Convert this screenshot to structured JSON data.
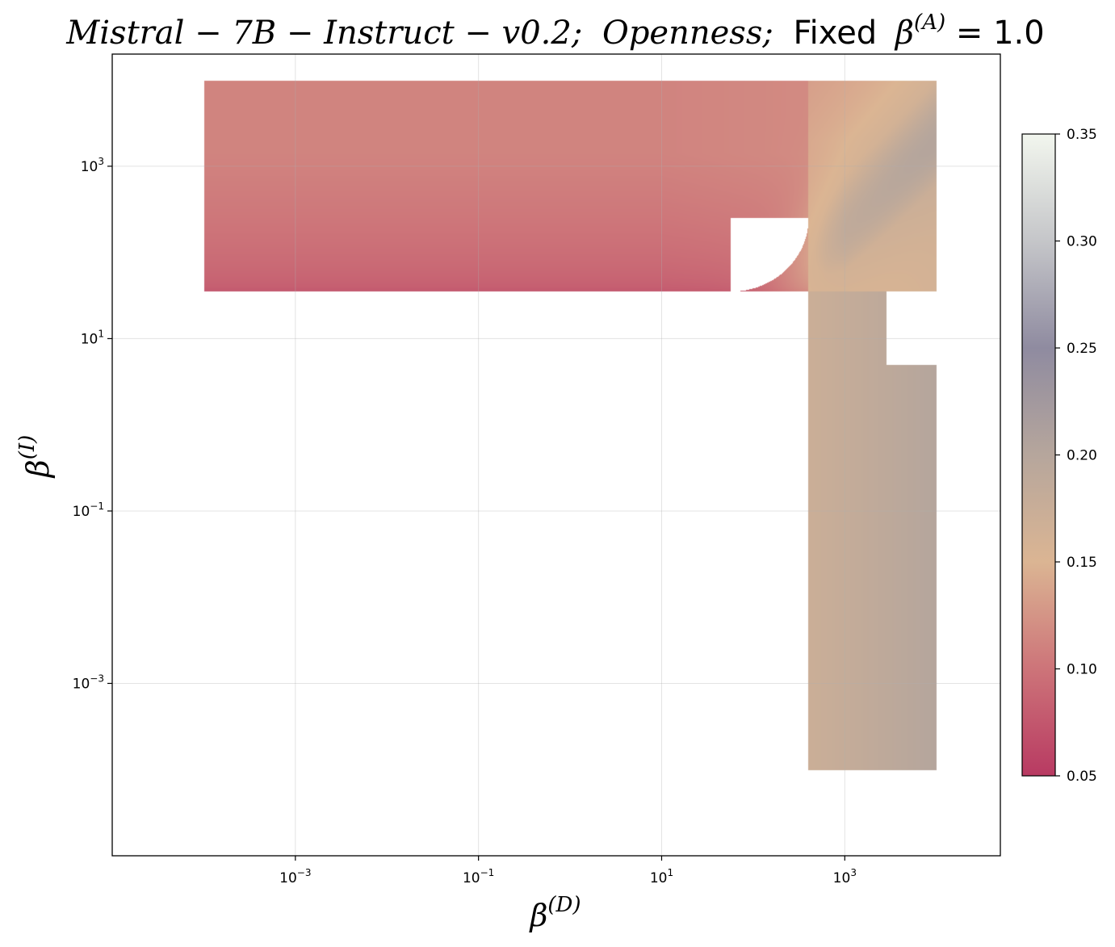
{
  "chart_data": {
    "type": "heatmap",
    "title": {
      "part1": "Mistral − 7B − Instruct − v0.2;",
      "part2": "Openness;",
      "part3": "Fixed",
      "beta": "β",
      "sup": "(A)",
      "eq": " = 1.0"
    },
    "xlabel": {
      "base": "β",
      "sup": "(D)"
    },
    "ylabel": {
      "base": "β",
      "sup": "(I)"
    },
    "x_scale": "log",
    "y_scale": "log",
    "xlim": [
      1e-05,
      50000
    ],
    "ylim": [
      1e-05,
      20000
    ],
    "x_ticks": [
      {
        "value": 0.001,
        "base": "10",
        "exp": "−3"
      },
      {
        "value": 0.1,
        "base": "10",
        "exp": "−1"
      },
      {
        "value": 10,
        "base": "10",
        "exp": "1"
      },
      {
        "value": 1000,
        "base": "10",
        "exp": "3"
      }
    ],
    "y_ticks": [
      {
        "value": 0.001,
        "base": "10",
        "exp": "−3"
      },
      {
        "value": 0.1,
        "base": "10",
        "exp": "−1"
      },
      {
        "value": 10,
        "base": "10",
        "exp": "1"
      },
      {
        "value": 1000,
        "base": "10",
        "exp": "3"
      }
    ],
    "grid": true,
    "data_extent": {
      "x": [
        0.0001,
        10000
      ],
      "y": [
        0.0001,
        10000
      ]
    },
    "valid_region": "L-shaped: defined for β(I) ≥ ~35 (all β(D)) or β(D) ≥ ~400 (all β(I)), joined by a rounded corner",
    "value_samples": [
      {
        "x": 0.0001,
        "y": 10000,
        "value": 0.11
      },
      {
        "x": 0.0001,
        "y": 40,
        "value": 0.075
      },
      {
        "x": 10,
        "y": 40,
        "value": 0.075
      },
      {
        "x": 800,
        "y": 500,
        "value": 0.155
      },
      {
        "x": 500,
        "y": 0.0001,
        "value": 0.175
      },
      {
        "x": 10000,
        "y": 0.0001,
        "value": 0.2
      },
      {
        "x": 10000,
        "y": 10000,
        "value": 0.12
      }
    ],
    "colorbar": {
      "range": [
        0.05,
        0.35
      ],
      "ticks": [
        "0.05",
        "0.10",
        "0.15",
        "0.20",
        "0.25",
        "0.30",
        "0.35"
      ],
      "stops": [
        {
          "value": 0.05,
          "color": "#b83a62"
        },
        {
          "value": 0.1,
          "color": "#cd7479"
        },
        {
          "value": 0.15,
          "color": "#dbb593"
        },
        {
          "value": 0.2,
          "color": "#b6a69c"
        },
        {
          "value": 0.25,
          "color": "#8f8ba0"
        },
        {
          "value": 0.3,
          "color": "#c5c6c9"
        },
        {
          "value": 0.35,
          "color": "#f2f6ee"
        }
      ]
    }
  }
}
